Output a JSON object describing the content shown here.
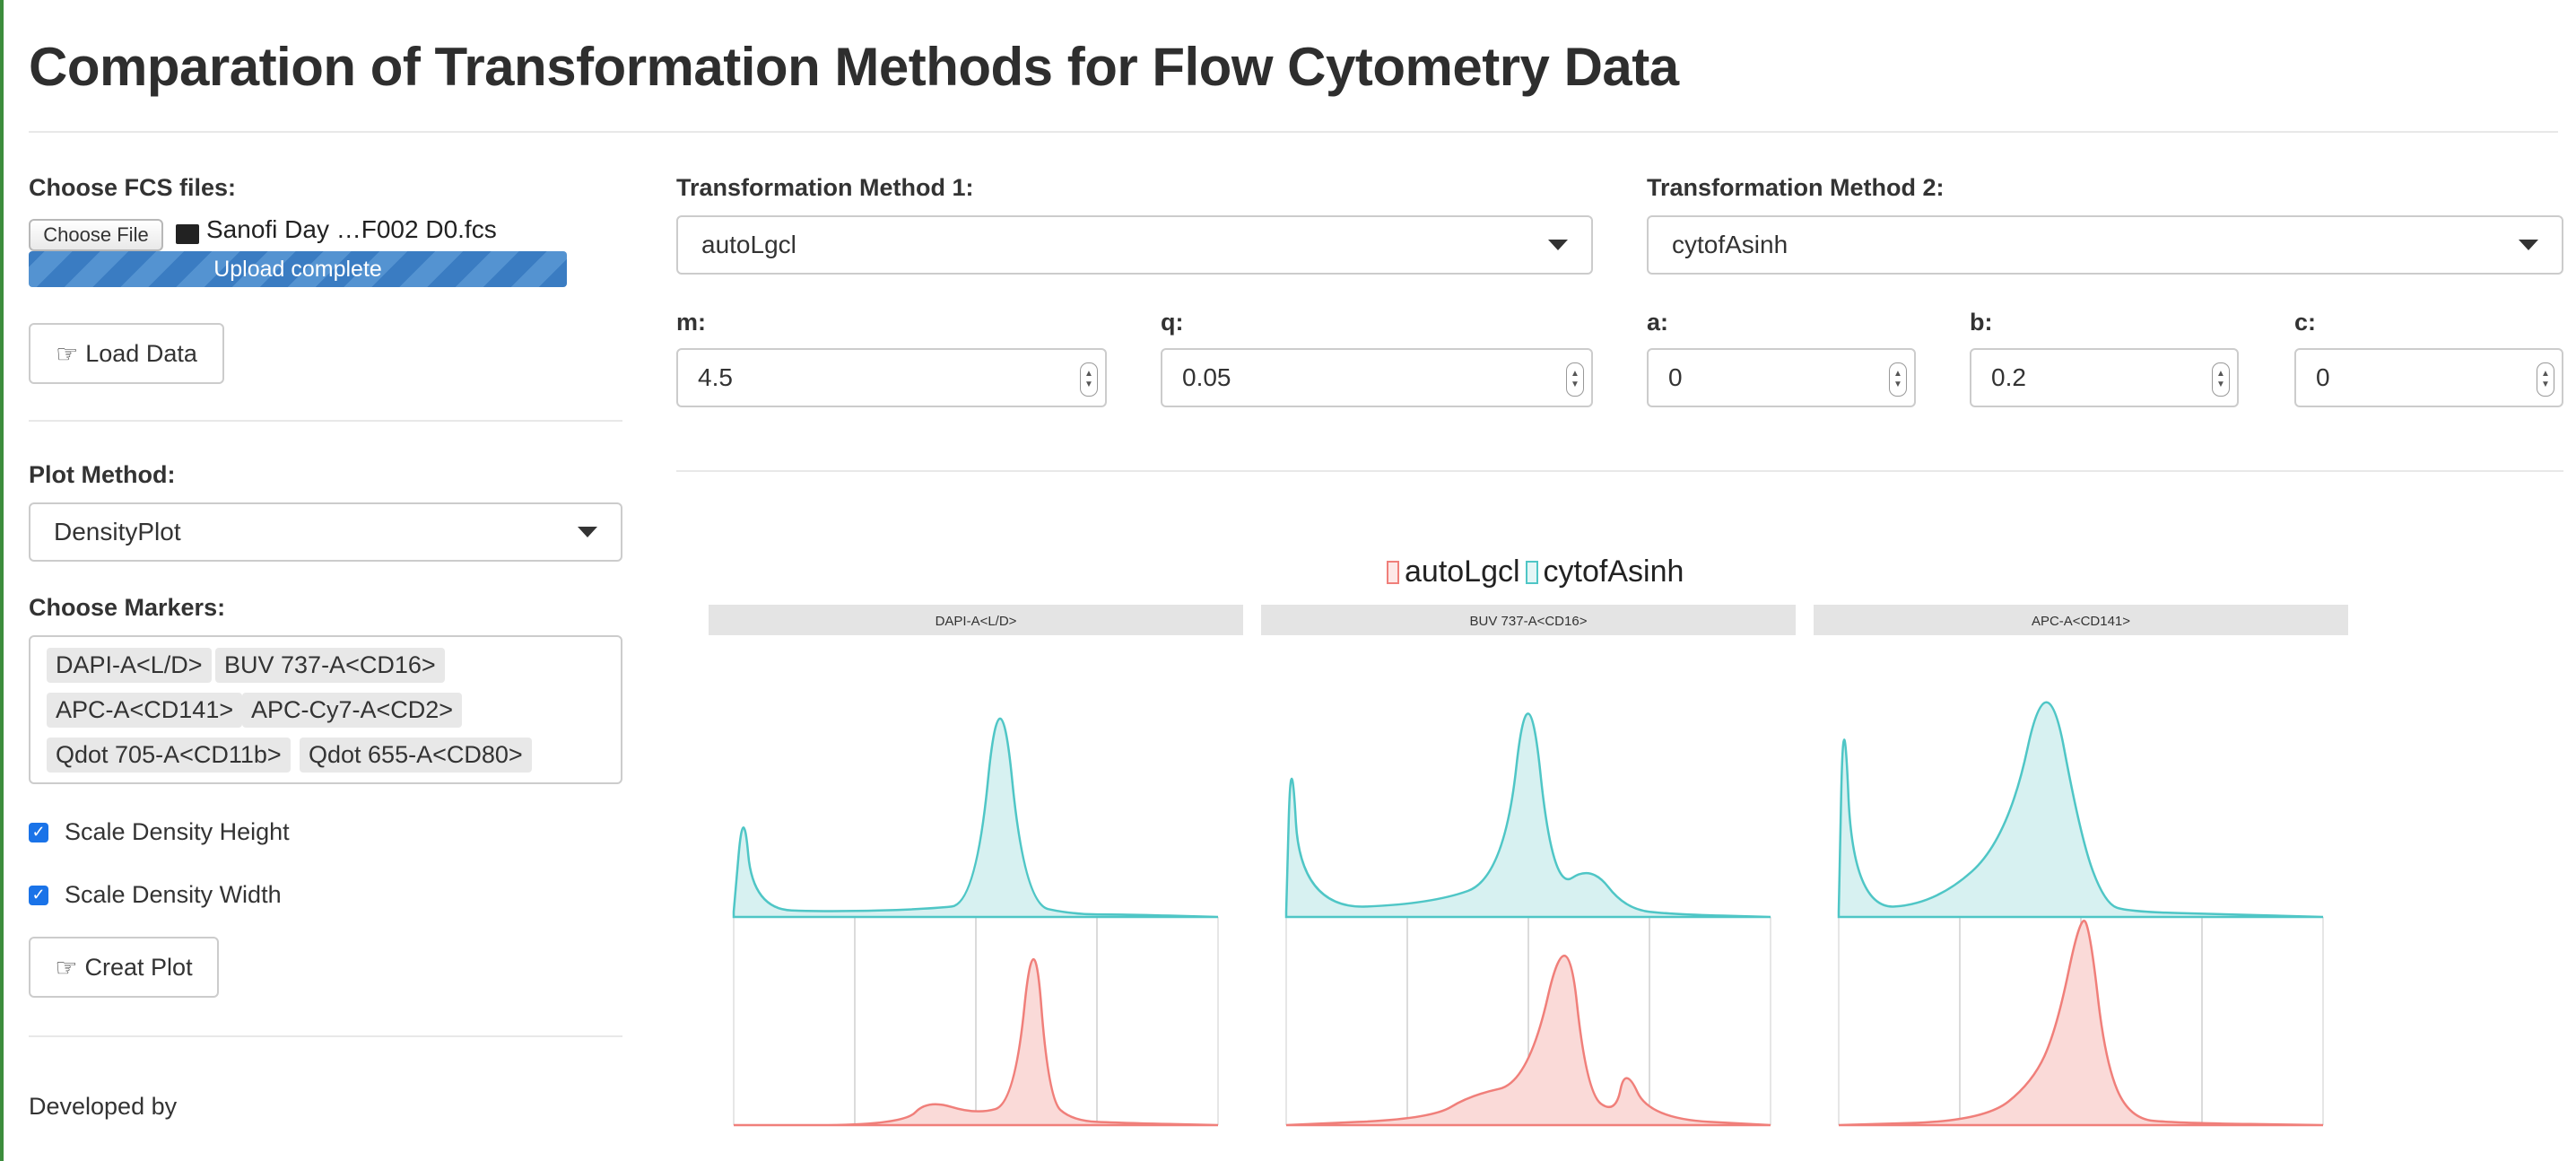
{
  "app": {
    "title": "Comparation of Transformation Methods for Flow Cytometry Data"
  },
  "sidebar": {
    "fcs_label": "Choose FCS files:",
    "choose_file_label": "Choose File",
    "file_name": "Sanofi Day …F002 D0.fcs",
    "upload_status": "Upload complete",
    "upload_progress": 1.0,
    "load_button": "Load Data",
    "plot_method_label": "Plot Method:",
    "plot_method_value": "DensityPlot",
    "markers_label": "Choose Markers:",
    "markers": [
      "DAPI-A<L/D>",
      "BUV 737-A<CD16>",
      "APC-A<CD141>",
      "APC-Cy7-A<CD2>",
      "Qdot 705-A<CD11b>",
      "Qdot 655-A<CD80>"
    ],
    "scale_height_label": "Scale Density Height",
    "scale_height_checked": true,
    "scale_width_label": "Scale Density Width",
    "scale_width_checked": true,
    "plot_button": "Creat Plot",
    "developed_by": "Developed by"
  },
  "main": {
    "method1": {
      "label": "Transformation Method 1:",
      "value": "autoLgcl"
    },
    "method2": {
      "label": "Transformation Method 2:",
      "value": "cytofAsinh"
    },
    "params": {
      "m": {
        "label": "m:",
        "value": "4.5"
      },
      "q": {
        "label": "q:",
        "value": "0.05"
      },
      "a": {
        "label": "a:",
        "value": "0"
      },
      "b": {
        "label": "b:",
        "value": "0.2"
      },
      "c": {
        "label": "c:",
        "value": "0"
      }
    }
  },
  "colors": {
    "autoLgcl": "#f07f7a",
    "cytofAsinh": "#4fc6c6",
    "button_blue": "#3a7cc2",
    "checkbox": "#1a73e8"
  },
  "chart_data": {
    "type": "area",
    "legend": [
      "autoLgcl",
      "cytofAsinh"
    ],
    "legend_position": "top",
    "panels": [
      {
        "title": "DAPI-A<L/D>",
        "series": [
          {
            "name": "cytofAsinh",
            "x": [
              0,
              0.02,
              0.04,
              0.2,
              0.4,
              0.5,
              0.55,
              0.6,
              0.7,
              0.8,
              1.0
            ],
            "y": [
              0.02,
              0.45,
              0.03,
              0.02,
              0.03,
              0.05,
              1.0,
              0.05,
              0.01,
              0.01,
              0
            ]
          },
          {
            "name": "autoLgcl",
            "x": [
              0,
              0.35,
              0.4,
              0.5,
              0.58,
              0.62,
              0.65,
              0.7,
              0.8,
              1.0
            ],
            "y": [
              0,
              0,
              0.12,
              0.05,
              0.1,
              1.0,
              0.12,
              0.02,
              0.01,
              0
            ]
          }
        ]
      },
      {
        "title": "BUV 737-A<CD16>",
        "series": [
          {
            "name": "cytofAsinh",
            "x": [
              0,
              0.01,
              0.03,
              0.3,
              0.45,
              0.5,
              0.55,
              0.63,
              0.7,
              0.8,
              1.0
            ],
            "y": [
              0.02,
              0.7,
              0.03,
              0.05,
              0.15,
              1.0,
              0.1,
              0.2,
              0.03,
              0.01,
              0
            ]
          },
          {
            "name": "autoLgcl",
            "x": [
              0,
              0.3,
              0.38,
              0.5,
              0.58,
              0.62,
              0.68,
              0.7,
              0.75,
              1.0
            ],
            "y": [
              0,
              0.03,
              0.14,
              0.2,
              1.0,
              0.15,
              0.05,
              0.28,
              0.03,
              0
            ]
          }
        ]
      },
      {
        "title": "APC-A<CD141>",
        "series": [
          {
            "name": "cytofAsinh",
            "x": [
              0,
              0.01,
              0.03,
              0.2,
              0.35,
              0.43,
              0.5,
              0.55,
              0.6,
              0.8,
              1.0
            ],
            "y": [
              0.02,
              0.9,
              0.03,
              0.05,
              0.3,
              1.0,
              0.3,
              0.05,
              0.02,
              0.01,
              0
            ]
          },
          {
            "name": "autoLgcl",
            "x": [
              0,
              0.3,
              0.4,
              0.45,
              0.5,
              0.52,
              0.55,
              0.6,
              0.7,
              1.0
            ],
            "y": [
              0,
              0.02,
              0.2,
              0.45,
              1.0,
              0.9,
              0.3,
              0.03,
              0.01,
              0
            ]
          }
        ]
      }
    ]
  }
}
